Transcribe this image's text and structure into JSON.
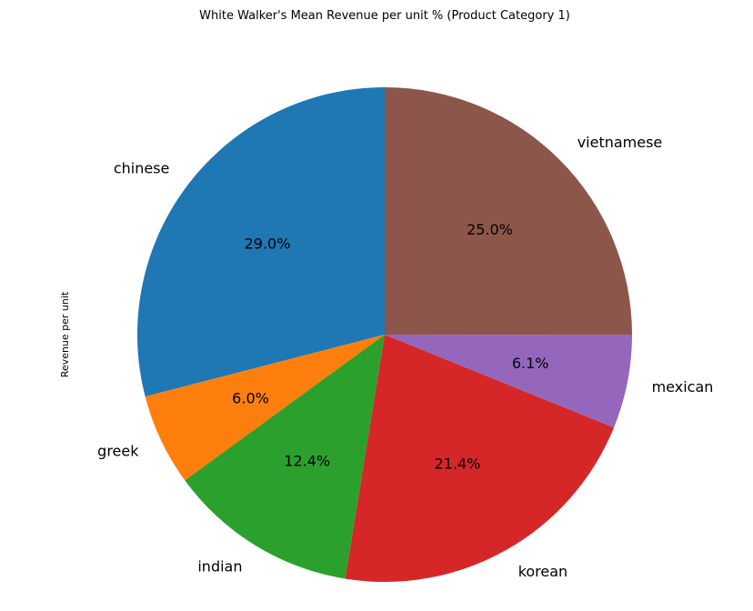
{
  "chart_data": {
    "type": "pie",
    "title": "White Walker's Mean Revenue per unit % (Product Category 1)",
    "ylabel": "Revenue per unit",
    "start_angle_deg": 90,
    "direction": "counterclockwise",
    "slices": [
      {
        "label": "chinese",
        "value": 29.0,
        "pct_text": "29.0%",
        "color": "#1f77b4"
      },
      {
        "label": "greek",
        "value": 6.0,
        "pct_text": "6.0%",
        "color": "#ff7f0e"
      },
      {
        "label": "indian",
        "value": 12.4,
        "pct_text": "12.4%",
        "color": "#2ca02c"
      },
      {
        "label": "korean",
        "value": 21.4,
        "pct_text": "21.4%",
        "color": "#d62728"
      },
      {
        "label": "mexican",
        "value": 6.1,
        "pct_text": "6.1%",
        "color": "#9467bd"
      },
      {
        "label": "vietnamese",
        "value": 25.0,
        "pct_text": "25.0%",
        "color": "#8c564b"
      }
    ]
  }
}
